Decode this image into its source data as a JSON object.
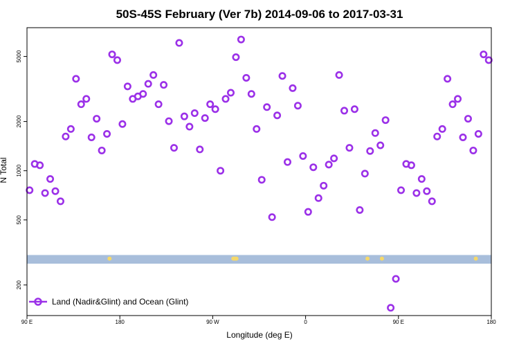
{
  "chart_data": {
    "type": "scatter",
    "title": "50S-45S February (Ver 7b)   2014-09-06 to 2017-03-31",
    "xlabel": "Longitude (deg E)",
    "ylabel": "N Total",
    "x_scale": "longitude-extended",
    "y_scale": "log",
    "xlim": [
      90,
      540
    ],
    "ylim": [
      130,
      7500
    ],
    "x_ticks": [
      {
        "value": 90,
        "label": "90 E"
      },
      {
        "value": 180,
        "label": "180"
      },
      {
        "value": 270,
        "label": "90 W"
      },
      {
        "value": 360,
        "label": "0"
      },
      {
        "value": 450,
        "label": "90 E"
      },
      {
        "value": 540,
        "label": "180"
      }
    ],
    "y_ticks": [
      {
        "value": 200,
        "label": "200"
      },
      {
        "value": 500,
        "label": "500"
      },
      {
        "value": 1000,
        "label": "1000"
      },
      {
        "value": 2000,
        "label": "2000"
      },
      {
        "value": 5000,
        "label": "5000"
      }
    ],
    "grid": false,
    "legend": {
      "position": "bottom-left"
    },
    "colors": {
      "series": "#9b30e8",
      "land_strip": "#a8bedb",
      "land_dots": "#f5d86a"
    },
    "series": [
      {
        "name": "Land (Nadir&Glint) and Ocean (Glint)",
        "marker": "open-circle",
        "points": [
          [
            92.5,
            760
          ],
          [
            97.5,
            1100
          ],
          [
            102.5,
            1080
          ],
          [
            107.5,
            730
          ],
          [
            112.5,
            890
          ],
          [
            117.5,
            750
          ],
          [
            122.5,
            650
          ],
          [
            127.5,
            1620
          ],
          [
            132.5,
            1800
          ],
          [
            137.5,
            3650
          ],
          [
            142.5,
            2550
          ],
          [
            147.5,
            2750
          ],
          [
            152.5,
            1600
          ],
          [
            157.5,
            2080
          ],
          [
            162.5,
            1330
          ],
          [
            167.5,
            1680
          ],
          [
            172.5,
            5150
          ],
          [
            177.5,
            4750
          ],
          [
            182.5,
            1930
          ],
          [
            187.5,
            3280
          ],
          [
            192.5,
            2750
          ],
          [
            197.5,
            2850
          ],
          [
            202.5,
            2950
          ],
          [
            207.5,
            3400
          ],
          [
            212.5,
            3850
          ],
          [
            217.5,
            2550
          ],
          [
            222.5,
            3350
          ],
          [
            227.5,
            2010
          ],
          [
            232.5,
            1380
          ],
          [
            237.5,
            6050
          ],
          [
            242.5,
            2150
          ],
          [
            247.5,
            1860
          ],
          [
            252.5,
            2250
          ],
          [
            257.5,
            1350
          ],
          [
            262.5,
            2100
          ],
          [
            267.5,
            2550
          ],
          [
            272.5,
            2380
          ],
          [
            277.5,
            1000
          ],
          [
            282.5,
            2750
          ],
          [
            287.5,
            3000
          ],
          [
            292.5,
            4950
          ],
          [
            297.5,
            6350
          ],
          [
            302.5,
            3700
          ],
          [
            307.5,
            2950
          ],
          [
            312.5,
            1800
          ],
          [
            317.5,
            880
          ],
          [
            322.5,
            2450
          ],
          [
            327.5,
            520
          ],
          [
            332.5,
            2180
          ],
          [
            337.5,
            3800
          ],
          [
            342.5,
            1130
          ],
          [
            347.5,
            3200
          ],
          [
            352.5,
            2500
          ],
          [
            357.5,
            1230
          ],
          [
            362.5,
            560
          ],
          [
            367.5,
            1050
          ],
          [
            372.5,
            680
          ],
          [
            377.5,
            810
          ],
          [
            382.5,
            1090
          ],
          [
            387.5,
            1190
          ],
          [
            392.5,
            3850
          ],
          [
            397.5,
            2330
          ],
          [
            402.5,
            1380
          ],
          [
            407.5,
            2380
          ],
          [
            412.5,
            575
          ],
          [
            417.5,
            960
          ],
          [
            422.5,
            1320
          ],
          [
            427.5,
            1700
          ],
          [
            432.5,
            1430
          ],
          [
            437.5,
            2040
          ],
          [
            442.5,
            145
          ],
          [
            447.5,
            218
          ],
          [
            452.5,
            760
          ],
          [
            457.5,
            1100
          ],
          [
            462.5,
            1080
          ],
          [
            467.5,
            730
          ],
          [
            472.5,
            890
          ],
          [
            477.5,
            750
          ],
          [
            482.5,
            650
          ],
          [
            487.5,
            1620
          ],
          [
            492.5,
            1800
          ],
          [
            497.5,
            3650
          ],
          [
            502.5,
            2550
          ],
          [
            507.5,
            2750
          ],
          [
            512.5,
            1600
          ],
          [
            517.5,
            2080
          ],
          [
            522.5,
            1330
          ],
          [
            527.5,
            1680
          ],
          [
            532.5,
            5150
          ],
          [
            537.5,
            4750
          ]
        ]
      }
    ],
    "land_markers": {
      "y_value": 290,
      "strip_y_range": [
        270,
        305
      ],
      "x": [
        170,
        290,
        291,
        292,
        293,
        420,
        434,
        525
      ]
    }
  }
}
